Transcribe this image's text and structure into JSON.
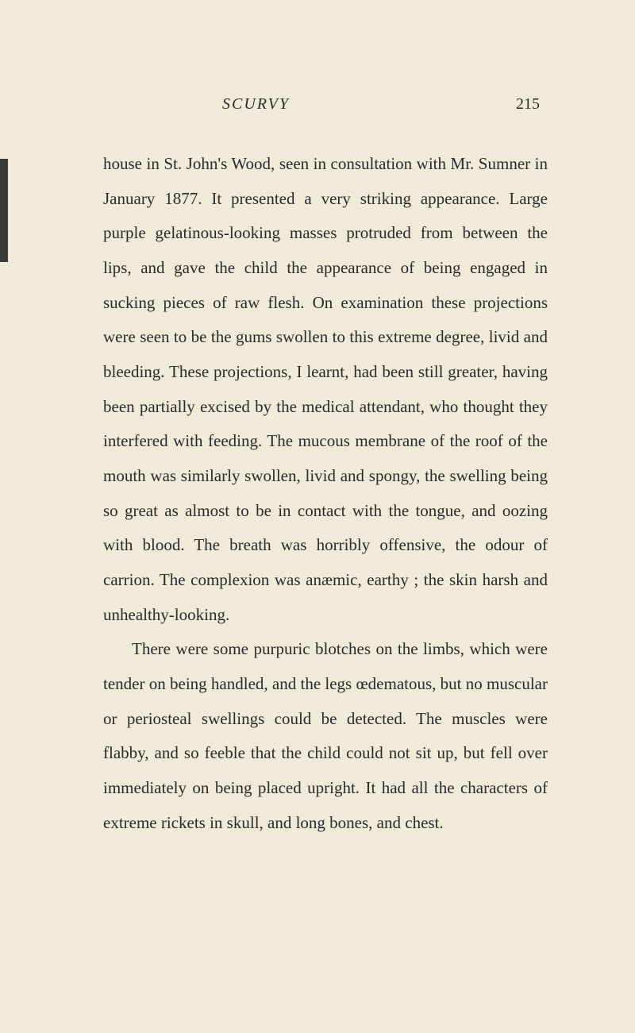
{
  "page": {
    "running_head": "SCURVY",
    "page_number": "215",
    "background_color": "#f0ead8",
    "text_color": "#2a2a28",
    "font_size_body": 21,
    "line_height": 2.08,
    "font_size_header": 20
  },
  "paragraphs": [
    {
      "text": "house in St. John's Wood, seen in consultation with Mr. Sumner in January 1877. It presented a very striking appearance. Large purple gelatinous-looking masses protruded from between the lips, and gave the child the appearance of being engaged in sucking pieces of raw flesh. On examination these projections were seen to be the gums swollen to this extreme degree, livid and bleeding. These projections, I learnt, had been still greater, having been partially excised by the medical attendant, who thought they interfered with feeding. The mucous membrane of the roof of the mouth was similarly swollen, livid and spongy, the swelling being so great as almost to be in contact with the tongue, and oozing with blood. The breath was horribly offensive, the odour of carrion. The complexion was anæmic, earthy ; the skin harsh and unhealthy-looking.",
      "indent": false
    },
    {
      "text": "There were some purpuric blotches on the limbs, which were tender on being handled, and the legs œdematous, but no muscular or periosteal swellings could be detected. The muscles were flabby, and so feeble that the child could not sit up, but fell over immediately on being placed upright. It had all the characters of extreme rickets in skull, and long bones, and chest.",
      "indent": true
    }
  ]
}
